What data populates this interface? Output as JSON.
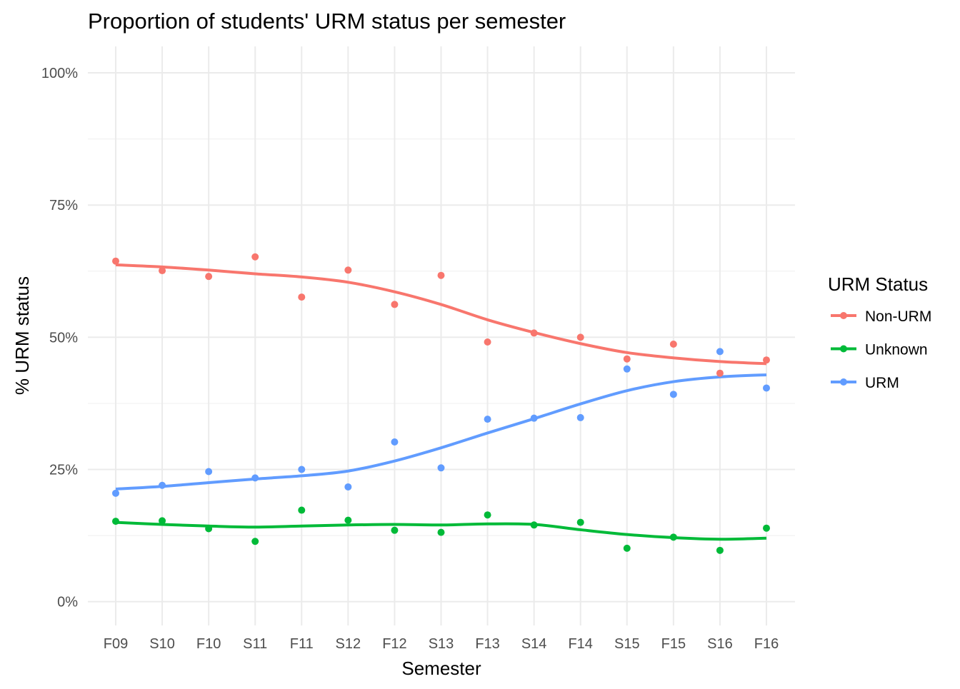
{
  "chart_data": {
    "type": "scatter",
    "title": "Proportion of students' URM status per semester",
    "xlabel": "Semester",
    "ylabel": "% URM status",
    "categories": [
      "F09",
      "S10",
      "F10",
      "S11",
      "F11",
      "S12",
      "F12",
      "S13",
      "F13",
      "S14",
      "F14",
      "S15",
      "F15",
      "S16",
      "F16"
    ],
    "ylim": [
      -4.5,
      105
    ],
    "yticks": [
      0,
      25,
      50,
      75,
      100
    ],
    "ytick_labels": [
      "0%",
      "25%",
      "50%",
      "75%",
      "100%"
    ],
    "grid": true,
    "smoothing": "loess",
    "legend": {
      "title": "URM Status",
      "position": "right"
    },
    "series": [
      {
        "name": "Non-URM",
        "color": "#F8766D",
        "values": [
          64.4,
          62.6,
          61.5,
          65.2,
          57.6,
          62.7,
          56.2,
          61.7,
          49.1,
          50.8,
          50.0,
          45.9,
          48.7,
          43.2,
          45.7
        ],
        "trend": [
          63.7,
          63.3,
          62.7,
          62.0,
          61.4,
          60.4,
          58.6,
          56.2,
          53.3,
          50.9,
          48.8,
          47.1,
          46.1,
          45.4,
          45.0
        ]
      },
      {
        "name": "Unknown",
        "color": "#00BA38",
        "values": [
          15.2,
          15.3,
          13.8,
          11.4,
          17.3,
          15.4,
          13.5,
          13.1,
          16.4,
          14.5,
          15.0,
          10.1,
          12.2,
          9.7,
          13.9
        ],
        "trend": [
          15.0,
          14.6,
          14.3,
          14.1,
          14.3,
          14.5,
          14.6,
          14.5,
          14.7,
          14.6,
          13.6,
          12.7,
          12.1,
          11.8,
          12.0
        ]
      },
      {
        "name": "URM",
        "color": "#619CFF",
        "values": [
          20.5,
          22.0,
          24.6,
          23.4,
          25.0,
          21.7,
          30.2,
          25.3,
          34.5,
          34.7,
          34.8,
          44.0,
          39.2,
          47.3,
          40.4
        ],
        "trend": [
          21.3,
          21.8,
          22.5,
          23.2,
          23.8,
          24.7,
          26.6,
          29.1,
          31.9,
          34.6,
          37.4,
          39.9,
          41.6,
          42.5,
          42.9
        ]
      }
    ]
  }
}
